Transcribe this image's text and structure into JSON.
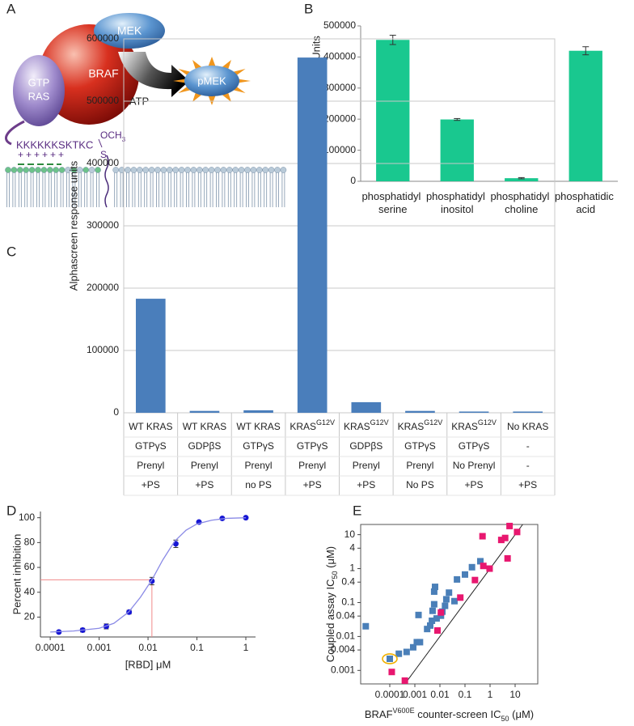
{
  "diagram": {
    "panel": "A",
    "labels": {
      "mek": "MEK",
      "braf": "BRAF",
      "gtp": "GTP",
      "ras": "RAS",
      "pmek": "pMEK",
      "atp": "ATP",
      "peptide": "KKKKKKSKTKC",
      "och": "OCH",
      "och_sub": "3",
      "s": "S",
      "plus": "++++++"
    }
  },
  "chart_data": [
    {
      "type": "bar",
      "panel": "B",
      "ylabel": "Alphascreen Response Units",
      "categories": [
        "phosphatidyl serine",
        "phosphatidyl inositol",
        "phosphatidyl choline",
        "phosphatidic acid"
      ],
      "values": [
        455000,
        199000,
        10000,
        420000
      ],
      "errors": [
        15000,
        3000,
        2000,
        13000
      ],
      "color": "#19c88f",
      "ylim": [
        0,
        500000
      ],
      "yticks": [
        0,
        100000,
        200000,
        300000,
        400000,
        500000
      ],
      "grid": false,
      "frame": false
    },
    {
      "type": "bar",
      "panel": "C",
      "ylabel": "Alphascreen response units",
      "values": [
        183000,
        3000,
        4000,
        570000,
        17000,
        3000,
        2000,
        2000
      ],
      "color": "#4a7ebb",
      "ylim": [
        0,
        600000
      ],
      "yticks": [
        0,
        100000,
        200000,
        300000,
        400000,
        500000,
        600000
      ],
      "grid": true,
      "frame": true,
      "table": [
        [
          "WT KRAS",
          "WT KRAS",
          "WT KRAS",
          [
            {
              "text": "KRAS"
            },
            {
              "text": "G12V",
              "sup": true
            }
          ],
          [
            {
              "text": "KRAS"
            },
            {
              "text": "G12V",
              "sup": true
            }
          ],
          [
            {
              "text": "KRAS"
            },
            {
              "text": "G12V",
              "sup": true
            }
          ],
          [
            {
              "text": "KRAS"
            },
            {
              "text": "G12V",
              "sup": true
            }
          ],
          "No KRAS"
        ],
        [
          "GTPγS",
          "GDPβS",
          "GTPγS",
          "GTPγS",
          "GDPβS",
          "GTPγS",
          "GTPγS",
          "-"
        ],
        [
          "Prenyl",
          "Prenyl",
          "Prenyl",
          "Prenyl",
          "Prenyl",
          "Prenyl",
          "No Prenyl",
          "-"
        ],
        [
          "+PS",
          "+PS",
          "no PS",
          "+PS",
          "+PS",
          "No PS",
          "+PS",
          "+PS"
        ]
      ]
    },
    {
      "type": "scatter",
      "panel": "D",
      "xlabel": "[RBD] μM",
      "ylabel": "Percent inhibition",
      "xlog": true,
      "xlim": [
        6.3e-05,
        1.58
      ],
      "ylim": [
        4,
        105
      ],
      "xticks": [
        0.0001,
        0.001,
        0.01,
        0.1,
        1
      ],
      "yticks": [
        20,
        40,
        60,
        80,
        100
      ],
      "frame": false,
      "marker": "circle",
      "series": [
        {
          "color": "#1616d4",
          "x": [
            0.00015,
            0.00046,
            0.0014,
            0.0041,
            0.012,
            0.037,
            0.11,
            0.33,
            1
          ],
          "values": [
            8,
            9.5,
            12.5,
            24,
            49,
            79,
            96.5,
            99.5,
            100
          ],
          "errors": [
            1,
            1.5,
            2,
            1.5,
            3,
            3,
            1,
            0.5,
            0.5
          ]
        },
        {
          "color": "#8a8ae6",
          "style": "line",
          "x": [
            0.0001,
            0.0003,
            0.001,
            0.002,
            0.004,
            0.007,
            0.012,
            0.02,
            0.035,
            0.06,
            0.1,
            0.2,
            0.4,
            1
          ],
          "values": [
            8,
            8.8,
            11,
            15,
            24,
            36,
            50,
            66,
            81,
            90,
            95,
            98,
            99.5,
            100
          ]
        }
      ],
      "guide": {
        "x": 0.012,
        "y": 50,
        "color": "#f08a8a"
      }
    },
    {
      "type": "scatter",
      "panel": "E",
      "xlabel": [
        {
          "text": "BRAF"
        },
        {
          "text": "V600E",
          "sup": true
        },
        {
          "text": " counter-screen IC"
        },
        {
          "text": "50",
          "sub": true
        },
        {
          "text": " (μM)"
        }
      ],
      "ylabel": [
        {
          "text": "Coupled assay IC"
        },
        {
          "text": "50",
          "sub": true
        },
        {
          "text": " (μM)"
        }
      ],
      "xlog": true,
      "ylog": true,
      "xlim": [
        6.9e-06,
        80
      ],
      "ylim": [
        0.0004,
        20
      ],
      "xticks": [
        0.0001,
        0.001,
        0.01,
        0.1,
        1,
        10
      ],
      "yticks": [
        10,
        4,
        1,
        0.4,
        0.1,
        0.04,
        0.01,
        0.004,
        0.001
      ],
      "frame": true,
      "identity_line": true,
      "marker": "square",
      "series": [
        {
          "color": "#4a7fb8",
          "x": [
            1.1e-05,
            0.0001,
            0.00023,
            0.00047,
            0.00086,
            0.0012,
            0.0016,
            0.0014,
            0.0031,
            0.0041,
            0.0048,
            0.0051,
            0.0059,
            0.0059,
            0.0064,
            0.0074,
            0.011,
            0.0125,
            0.016,
            0.018,
            0.023,
            0.038,
            0.048,
            0.1,
            0.19,
            0.41
          ],
          "values": [
            0.02,
            0.0022,
            0.0031,
            0.0035,
            0.0048,
            0.0068,
            0.0068,
            0.043,
            0.0166,
            0.021,
            0.029,
            0.057,
            0.089,
            0.21,
            0.29,
            0.034,
            0.041,
            0.054,
            0.08,
            0.125,
            0.196,
            0.11,
            0.48,
            0.67,
            1.1,
            1.65
          ]
        },
        {
          "color": "#e8176f",
          "x": [
            0.00012,
            0.0004,
            0.008,
            0.011,
            0.065,
            0.25,
            0.5,
            0.54,
            0.96,
            2.8,
            4,
            5,
            6,
            12
          ],
          "values": [
            0.0009,
            0.0005,
            0.015,
            0.051,
            0.14,
            0.46,
            9,
            1.2,
            1,
            7,
            8,
            2,
            18,
            12
          ]
        }
      ],
      "highlight": {
        "x": 0.0001,
        "y": 0.0022,
        "color": "#f0b000"
      }
    }
  ]
}
